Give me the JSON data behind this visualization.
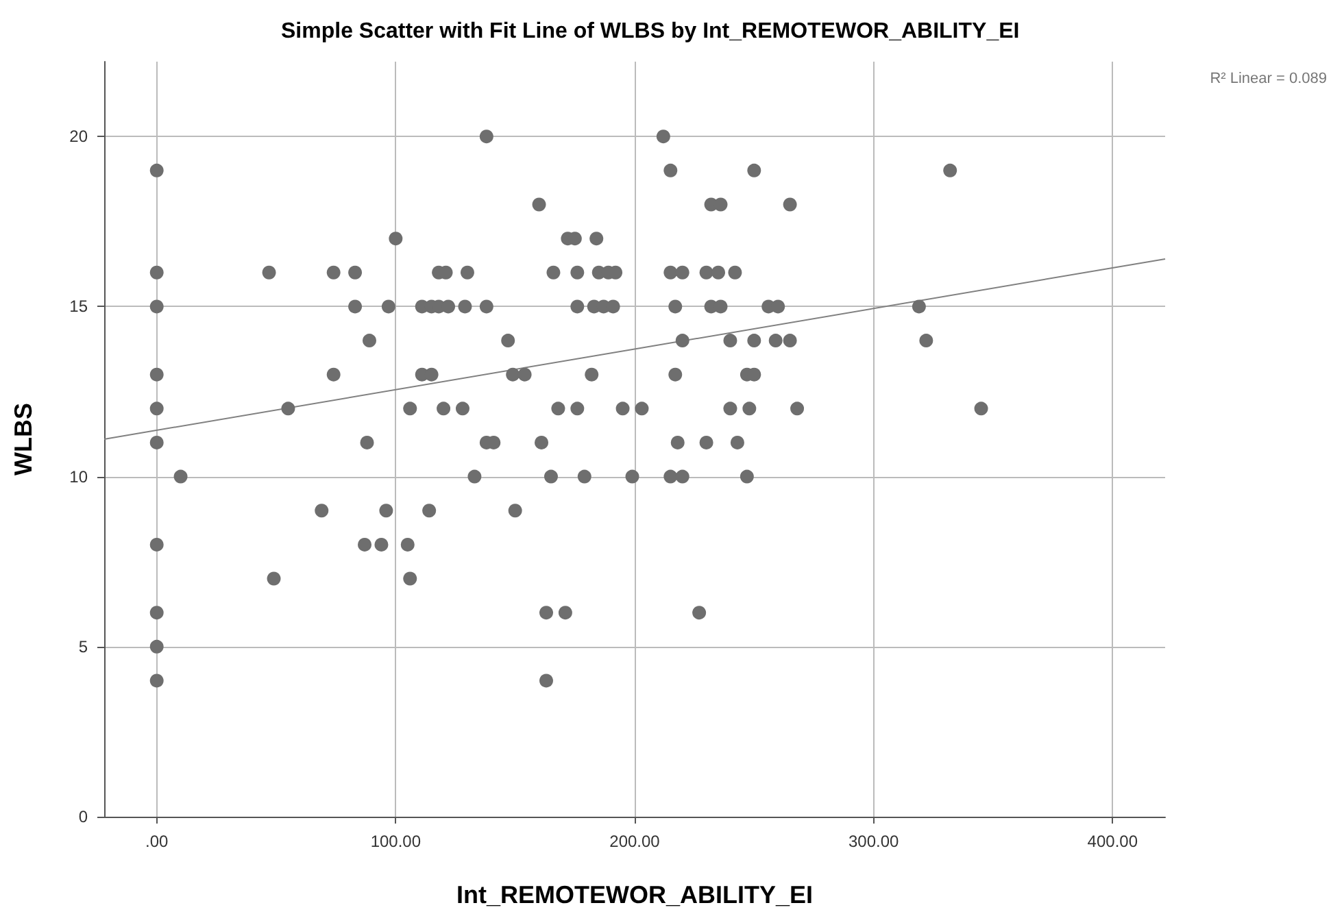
{
  "chart_data": {
    "type": "scatter",
    "title": "Simple Scatter with Fit Line of WLBS by Int_REMOTEWOR_ABILITY_EI",
    "xlabel": "Int_REMOTEWOR_ABILITY_EI",
    "ylabel": "WLBS",
    "annotations": [
      "R² Linear = 0.089"
    ],
    "xlim": [
      -22,
      422
    ],
    "xticks": [
      {
        "value": 0,
        "label": ".00"
      },
      {
        "value": 100,
        "label": "100.00"
      },
      {
        "value": 200,
        "label": "200.00"
      },
      {
        "value": 300,
        "label": "300.00"
      },
      {
        "value": 400,
        "label": "400.00"
      }
    ],
    "ylim": [
      0,
      22.2
    ],
    "yticks": [
      0,
      5,
      10,
      15,
      20
    ],
    "grid": true,
    "marker": "circle",
    "series": [
      {
        "color": "#6e6e6e",
        "x": [
          138,
          212,
          0,
          215,
          250,
          332,
          160,
          232,
          236,
          265,
          100,
          172,
          175,
          184,
          0,
          47,
          74,
          83,
          118,
          121,
          130,
          166,
          176,
          185,
          189,
          192,
          215,
          220,
          230,
          235,
          242,
          0,
          83,
          97,
          111,
          115,
          118,
          122,
          129,
          138,
          176,
          183,
          187,
          191,
          217,
          232,
          236,
          256,
          260,
          319,
          89,
          147,
          220,
          240,
          250,
          259,
          265,
          322,
          0,
          74,
          111,
          115,
          149,
          154,
          182,
          217,
          247,
          250,
          0,
          55,
          106,
          120,
          128,
          168,
          176,
          195,
          203,
          240,
          248,
          268,
          345,
          0,
          88,
          138,
          141,
          161,
          218,
          230,
          243,
          10,
          133,
          165,
          179,
          199,
          215,
          220,
          247,
          69,
          96,
          114,
          150,
          0,
          87,
          94,
          105,
          49,
          106,
          0,
          163,
          171,
          227,
          0,
          0,
          163
        ],
        "values": [
          20,
          20,
          19,
          19,
          19,
          19,
          18,
          18,
          18,
          18,
          17,
          17,
          17,
          17,
          16,
          16,
          16,
          16,
          16,
          16,
          16,
          16,
          16,
          16,
          16,
          16,
          16,
          16,
          16,
          16,
          16,
          15,
          15,
          15,
          15,
          15,
          15,
          15,
          15,
          15,
          15,
          15,
          15,
          15,
          15,
          15,
          15,
          15,
          15,
          15,
          14,
          14,
          14,
          14,
          14,
          14,
          14,
          14,
          13,
          13,
          13,
          13,
          13,
          13,
          13,
          13,
          13,
          13,
          12,
          12,
          12,
          12,
          12,
          12,
          12,
          12,
          12,
          12,
          12,
          12,
          12,
          11,
          11,
          11,
          11,
          11,
          11,
          11,
          11,
          10,
          10,
          10,
          10,
          10,
          10,
          10,
          10,
          9,
          9,
          9,
          9,
          8,
          8,
          8,
          8,
          7,
          7,
          6,
          6,
          6,
          6,
          5,
          4,
          4
        ]
      },
      {
        "type": "line",
        "color": "#808080",
        "marker": "none",
        "x": [
          -22,
          422
        ],
        "values": [
          11.1,
          16.4
        ]
      }
    ]
  }
}
